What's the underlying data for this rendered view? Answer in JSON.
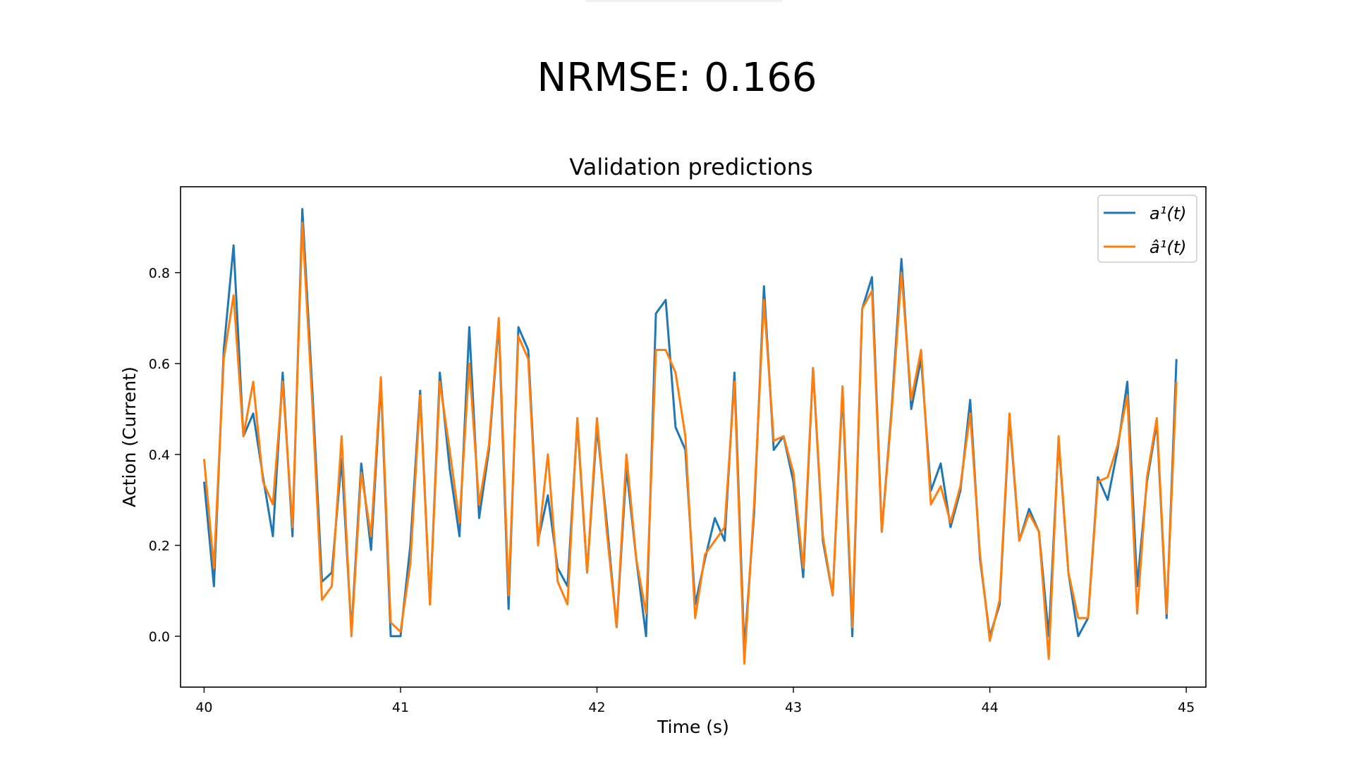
{
  "header": {
    "title": "NRMSE: 0.166"
  },
  "chart_data": {
    "type": "line",
    "title": "Validation predictions",
    "xlabel": "Time (s)",
    "ylabel": "Action (Current)",
    "xlim": [
      39.88,
      45.1
    ],
    "ylim": [
      -0.112,
      0.989
    ],
    "xticks": [
      40,
      41,
      42,
      43,
      44,
      45
    ],
    "xtick_labels": [
      "40",
      "41",
      "42",
      "43",
      "44",
      "45"
    ],
    "yticks": [
      0.0,
      0.2,
      0.4,
      0.6,
      0.8
    ],
    "ytick_labels": [
      "0.0",
      "0.2",
      "0.4",
      "0.6",
      "0.8"
    ],
    "grid": false,
    "legend_position": "top-right",
    "x": [
      40.0,
      40.05,
      40.1,
      40.15,
      40.2,
      40.25,
      40.3,
      40.35,
      40.4,
      40.45,
      40.5,
      40.55,
      40.6,
      40.65,
      40.7,
      40.75,
      40.8,
      40.85,
      40.9,
      40.95,
      41.0,
      41.05,
      41.1,
      41.15,
      41.2,
      41.25,
      41.3,
      41.35,
      41.4,
      41.45,
      41.5,
      41.55,
      41.6,
      41.65,
      41.7,
      41.75,
      41.8,
      41.85,
      41.9,
      41.95,
      42.0,
      42.05,
      42.1,
      42.15,
      42.2,
      42.25,
      42.3,
      42.35,
      42.4,
      42.45,
      42.5,
      42.55,
      42.6,
      42.65,
      42.7,
      42.75,
      42.8,
      42.85,
      42.9,
      42.95,
      43.0,
      43.05,
      43.1,
      43.15,
      43.2,
      43.25,
      43.3,
      43.35,
      43.4,
      43.45,
      43.5,
      43.55,
      43.6,
      43.65,
      43.7,
      43.75,
      43.8,
      43.85,
      43.9,
      43.95,
      44.0,
      44.05,
      44.1,
      44.15,
      44.2,
      44.25,
      44.3,
      44.35,
      44.4,
      44.45,
      44.5,
      44.55,
      44.6,
      44.65,
      44.7,
      44.75,
      44.8,
      44.85,
      44.9,
      44.95
    ],
    "series": [
      {
        "name": "a¹(t)",
        "color": "#1f77b4",
        "values": [
          0.34,
          0.11,
          0.63,
          0.86,
          0.44,
          0.49,
          0.35,
          0.22,
          0.58,
          0.22,
          0.94,
          0.55,
          0.12,
          0.14,
          0.39,
          0.01,
          0.38,
          0.19,
          0.56,
          0.0,
          0.0,
          0.2,
          0.54,
          0.07,
          0.58,
          0.37,
          0.22,
          0.68,
          0.26,
          0.41,
          0.69,
          0.06,
          0.68,
          0.63,
          0.21,
          0.31,
          0.15,
          0.11,
          0.47,
          0.14,
          0.46,
          0.25,
          0.02,
          0.37,
          0.17,
          0.0,
          0.71,
          0.74,
          0.46,
          0.41,
          0.07,
          0.17,
          0.26,
          0.21,
          0.58,
          -0.03,
          0.27,
          0.77,
          0.41,
          0.44,
          0.34,
          0.13,
          0.59,
          0.21,
          0.09,
          0.54,
          0.0,
          0.72,
          0.79,
          0.23,
          0.5,
          0.83,
          0.5,
          0.61,
          0.32,
          0.38,
          0.24,
          0.32,
          0.52,
          0.17,
          0.0,
          0.07,
          0.48,
          0.21,
          0.28,
          0.23,
          0.0,
          0.43,
          0.14,
          0.0,
          0.04,
          0.35,
          0.3,
          0.41,
          0.56,
          0.11,
          0.34,
          0.47,
          0.04,
          0.61
        ]
      },
      {
        "name": "â¹(t)",
        "color": "#ff7f0e",
        "values": [
          0.39,
          0.15,
          0.61,
          0.75,
          0.44,
          0.56,
          0.34,
          0.29,
          0.56,
          0.24,
          0.91,
          0.52,
          0.08,
          0.11,
          0.44,
          0.0,
          0.36,
          0.22,
          0.57,
          0.03,
          0.01,
          0.16,
          0.53,
          0.07,
          0.56,
          0.41,
          0.25,
          0.6,
          0.29,
          0.42,
          0.7,
          0.09,
          0.66,
          0.61,
          0.2,
          0.4,
          0.12,
          0.07,
          0.48,
          0.14,
          0.48,
          0.23,
          0.02,
          0.4,
          0.17,
          0.05,
          0.63,
          0.63,
          0.58,
          0.44,
          0.04,
          0.18,
          0.21,
          0.24,
          0.56,
          -0.06,
          0.29,
          0.74,
          0.43,
          0.44,
          0.36,
          0.15,
          0.59,
          0.22,
          0.09,
          0.55,
          0.02,
          0.72,
          0.76,
          0.23,
          0.49,
          0.8,
          0.52,
          0.63,
          0.29,
          0.33,
          0.25,
          0.33,
          0.49,
          0.18,
          -0.01,
          0.08,
          0.49,
          0.21,
          0.27,
          0.23,
          -0.05,
          0.44,
          0.14,
          0.04,
          0.04,
          0.34,
          0.35,
          0.42,
          0.53,
          0.05,
          0.35,
          0.48,
          0.05,
          0.56
        ]
      }
    ]
  }
}
